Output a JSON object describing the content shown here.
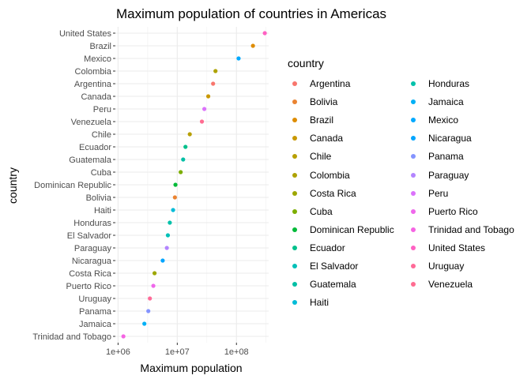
{
  "chart_data": {
    "type": "scatter",
    "title": "Maximum population of countries in Americas",
    "xlabel": "Maximum population",
    "ylabel": "country",
    "x_scale": "log10",
    "xlim": [
      900000,
      350000000
    ],
    "x_ticks": [
      1000000,
      10000000,
      100000000
    ],
    "x_tick_labels": [
      "1e+06",
      "1e+07",
      "1e+08"
    ],
    "legend_title": "country",
    "legend_position": "right",
    "grid": true,
    "points": [
      {
        "country": "United States",
        "value": 301139947,
        "color": "#FF61C3"
      },
      {
        "country": "Brazil",
        "value": 190010647,
        "color": "#DE8C00"
      },
      {
        "country": "Mexico",
        "value": 108700891,
        "color": "#00A9FF"
      },
      {
        "country": "Colombia",
        "value": 44227550,
        "color": "#AEA200"
      },
      {
        "country": "Argentina",
        "value": 40301927,
        "color": "#F8766D"
      },
      {
        "country": "Canada",
        "value": 33390141,
        "color": "#C99800"
      },
      {
        "country": "Peru",
        "value": 28674757,
        "color": "#DB72FB"
      },
      {
        "country": "Venezuela",
        "value": 26084662,
        "color": "#FF6C91"
      },
      {
        "country": "Chile",
        "value": 16284741,
        "color": "#B79F00"
      },
      {
        "country": "Ecuador",
        "value": 13755680,
        "color": "#00C08B"
      },
      {
        "country": "Guatemala",
        "value": 12572928,
        "color": "#00BFA5"
      },
      {
        "country": "Cuba",
        "value": 11416987,
        "color": "#7CAE00"
      },
      {
        "country": "Dominican Republic",
        "value": 9319622,
        "color": "#00BA38"
      },
      {
        "country": "Bolivia",
        "value": 9119152,
        "color": "#EA8331"
      },
      {
        "country": "Haiti",
        "value": 8502814,
        "color": "#00BCD8"
      },
      {
        "country": "Honduras",
        "value": 7483763,
        "color": "#00C1AA"
      },
      {
        "country": "El Salvador",
        "value": 6939688,
        "color": "#00C0B8"
      },
      {
        "country": "Paraguay",
        "value": 6667147,
        "color": "#B385FF"
      },
      {
        "country": "Nicaragua",
        "value": 5675356,
        "color": "#00A5FF"
      },
      {
        "country": "Costa Rica",
        "value": 4133884,
        "color": "#9DA700"
      },
      {
        "country": "Puerto Rico",
        "value": 3942491,
        "color": "#EF67EB"
      },
      {
        "country": "Uruguay",
        "value": 3447496,
        "color": "#FF6A98"
      },
      {
        "country": "Panama",
        "value": 3242173,
        "color": "#8494FF"
      },
      {
        "country": "Jamaica",
        "value": 2780132,
        "color": "#00B0F6"
      },
      {
        "country": "Trinidad and Tobago",
        "value": 1230000,
        "color": "#F564E3"
      }
    ],
    "legend_entries": [
      {
        "label": "Argentina",
        "color": "#F8766D"
      },
      {
        "label": "Bolivia",
        "color": "#EA8331"
      },
      {
        "label": "Brazil",
        "color": "#DE8C00"
      },
      {
        "label": "Canada",
        "color": "#C99800"
      },
      {
        "label": "Chile",
        "color": "#B79F00"
      },
      {
        "label": "Colombia",
        "color": "#AEA200"
      },
      {
        "label": "Costa Rica",
        "color": "#9DA700"
      },
      {
        "label": "Cuba",
        "color": "#7CAE00"
      },
      {
        "label": "Dominican Republic",
        "color": "#00BA38"
      },
      {
        "label": "Ecuador",
        "color": "#00C08B"
      },
      {
        "label": "El Salvador",
        "color": "#00C0B8"
      },
      {
        "label": "Guatemala",
        "color": "#00BFA5"
      },
      {
        "label": "Haiti",
        "color": "#00BCD8"
      },
      {
        "label": "Honduras",
        "color": "#00C1AA"
      },
      {
        "label": "Jamaica",
        "color": "#00B0F6"
      },
      {
        "label": "Mexico",
        "color": "#00A9FF"
      },
      {
        "label": "Nicaragua",
        "color": "#00A5FF"
      },
      {
        "label": "Panama",
        "color": "#8494FF"
      },
      {
        "label": "Paraguay",
        "color": "#B385FF"
      },
      {
        "label": "Peru",
        "color": "#DB72FB"
      },
      {
        "label": "Puerto Rico",
        "color": "#EF67EB"
      },
      {
        "label": "Trinidad and Tobago",
        "color": "#F564E3"
      },
      {
        "label": "United States",
        "color": "#FF61C3"
      },
      {
        "label": "Uruguay",
        "color": "#FF6A98"
      },
      {
        "label": "Venezuela",
        "color": "#FF6C91"
      }
    ]
  }
}
